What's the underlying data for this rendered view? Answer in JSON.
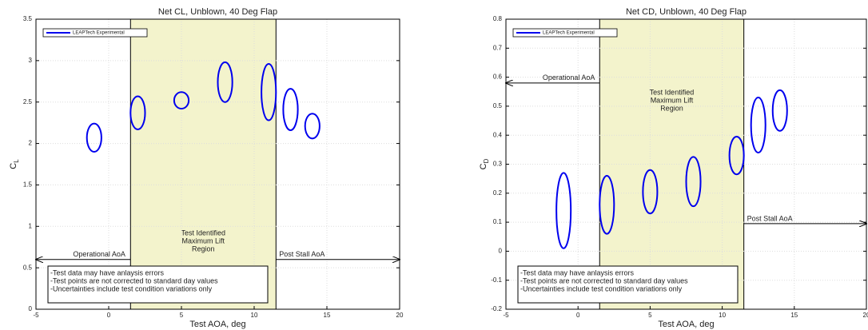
{
  "chart_data": [
    {
      "type": "ellipse",
      "title": "Net CL, Unblown, 40 Deg Flap",
      "xlabel": "Test AOA, deg",
      "ylabel": {
        "main": "C",
        "sub": "L"
      },
      "xlim": [
        -5,
        20
      ],
      "xticks": [
        -5,
        0,
        5,
        10,
        15,
        20
      ],
      "ylim": [
        0,
        3.5
      ],
      "yticks": [
        0,
        0.5,
        1,
        1.5,
        2,
        2.5,
        3,
        3.5
      ],
      "grid": true,
      "series": [
        {
          "name": "LEAPTech Experimental",
          "color": "#0000ee",
          "x": [
            -1,
            2,
            5,
            8,
            11,
            12.5,
            14
          ],
          "values": [
            2.07,
            2.37,
            2.52,
            2.74,
            2.62,
            2.41,
            2.21
          ],
          "yerr": [
            0.17,
            0.2,
            0.1,
            0.24,
            0.34,
            0.25,
            0.15
          ],
          "xerr": [
            0.5,
            0.5,
            0.5,
            0.5,
            0.5,
            0.5,
            0.5
          ]
        }
      ],
      "region": {
        "x": [
          1.5,
          11.5
        ],
        "color": "#f3f3cc",
        "label": [
          "Test Identified",
          "Maximum Lift",
          "Region"
        ]
      },
      "arrows": [
        {
          "text": "Operational AoA",
          "from": 1.5,
          "to": -5,
          "y": 0.6
        },
        {
          "text": "Post Stall AoA",
          "from": 11.5,
          "to": 20,
          "y": 0.6
        }
      ],
      "note": [
        "-Test data may have anlaysis errors",
        "-Test points are not corrected to standard day values",
        "-Uncertainties include test condition variations only"
      ]
    },
    {
      "type": "ellipse",
      "title": "Net CD, Unblown, 40 Deg Flap",
      "xlabel": "Test AOA, deg",
      "ylabel": {
        "main": "C",
        "sub": "D"
      },
      "xlim": [
        -5,
        20
      ],
      "xticks": [
        -5,
        0,
        5,
        10,
        15,
        20
      ],
      "ylim": [
        -0.2,
        0.8
      ],
      "yticks": [
        -0.2,
        -0.1,
        0,
        0.1,
        0.2,
        0.3,
        0.4,
        0.5,
        0.6,
        0.7,
        0.8
      ],
      "grid": true,
      "series": [
        {
          "name": "LEAPTech Experimental",
          "color": "#0000ee",
          "x": [
            -1,
            2,
            5,
            8,
            11,
            12.5,
            14
          ],
          "values": [
            0.14,
            0.16,
            0.205,
            0.24,
            0.33,
            0.435,
            0.485
          ],
          "yerr": [
            0.13,
            0.1,
            0.075,
            0.085,
            0.065,
            0.095,
            0.07
          ],
          "xerr": [
            0.5,
            0.5,
            0.5,
            0.5,
            0.5,
            0.5,
            0.5
          ]
        }
      ],
      "region": {
        "x": [
          1.5,
          11.5
        ],
        "color": "#f3f3cc",
        "label": [
          "Test Identified",
          "Maximum Lift",
          "Region"
        ]
      },
      "arrows": [
        {
          "text": "Operational AoA",
          "from": 1.5,
          "to": -5,
          "y": 0.58
        },
        {
          "text": "Post Stall AoA",
          "from": 11.5,
          "to": 20,
          "y": 0.095
        }
      ],
      "note": [
        "-Test data may have anlaysis errors",
        "-Test points are not corrected to standard day values",
        "-Uncertainties include test condition variations only"
      ]
    }
  ]
}
